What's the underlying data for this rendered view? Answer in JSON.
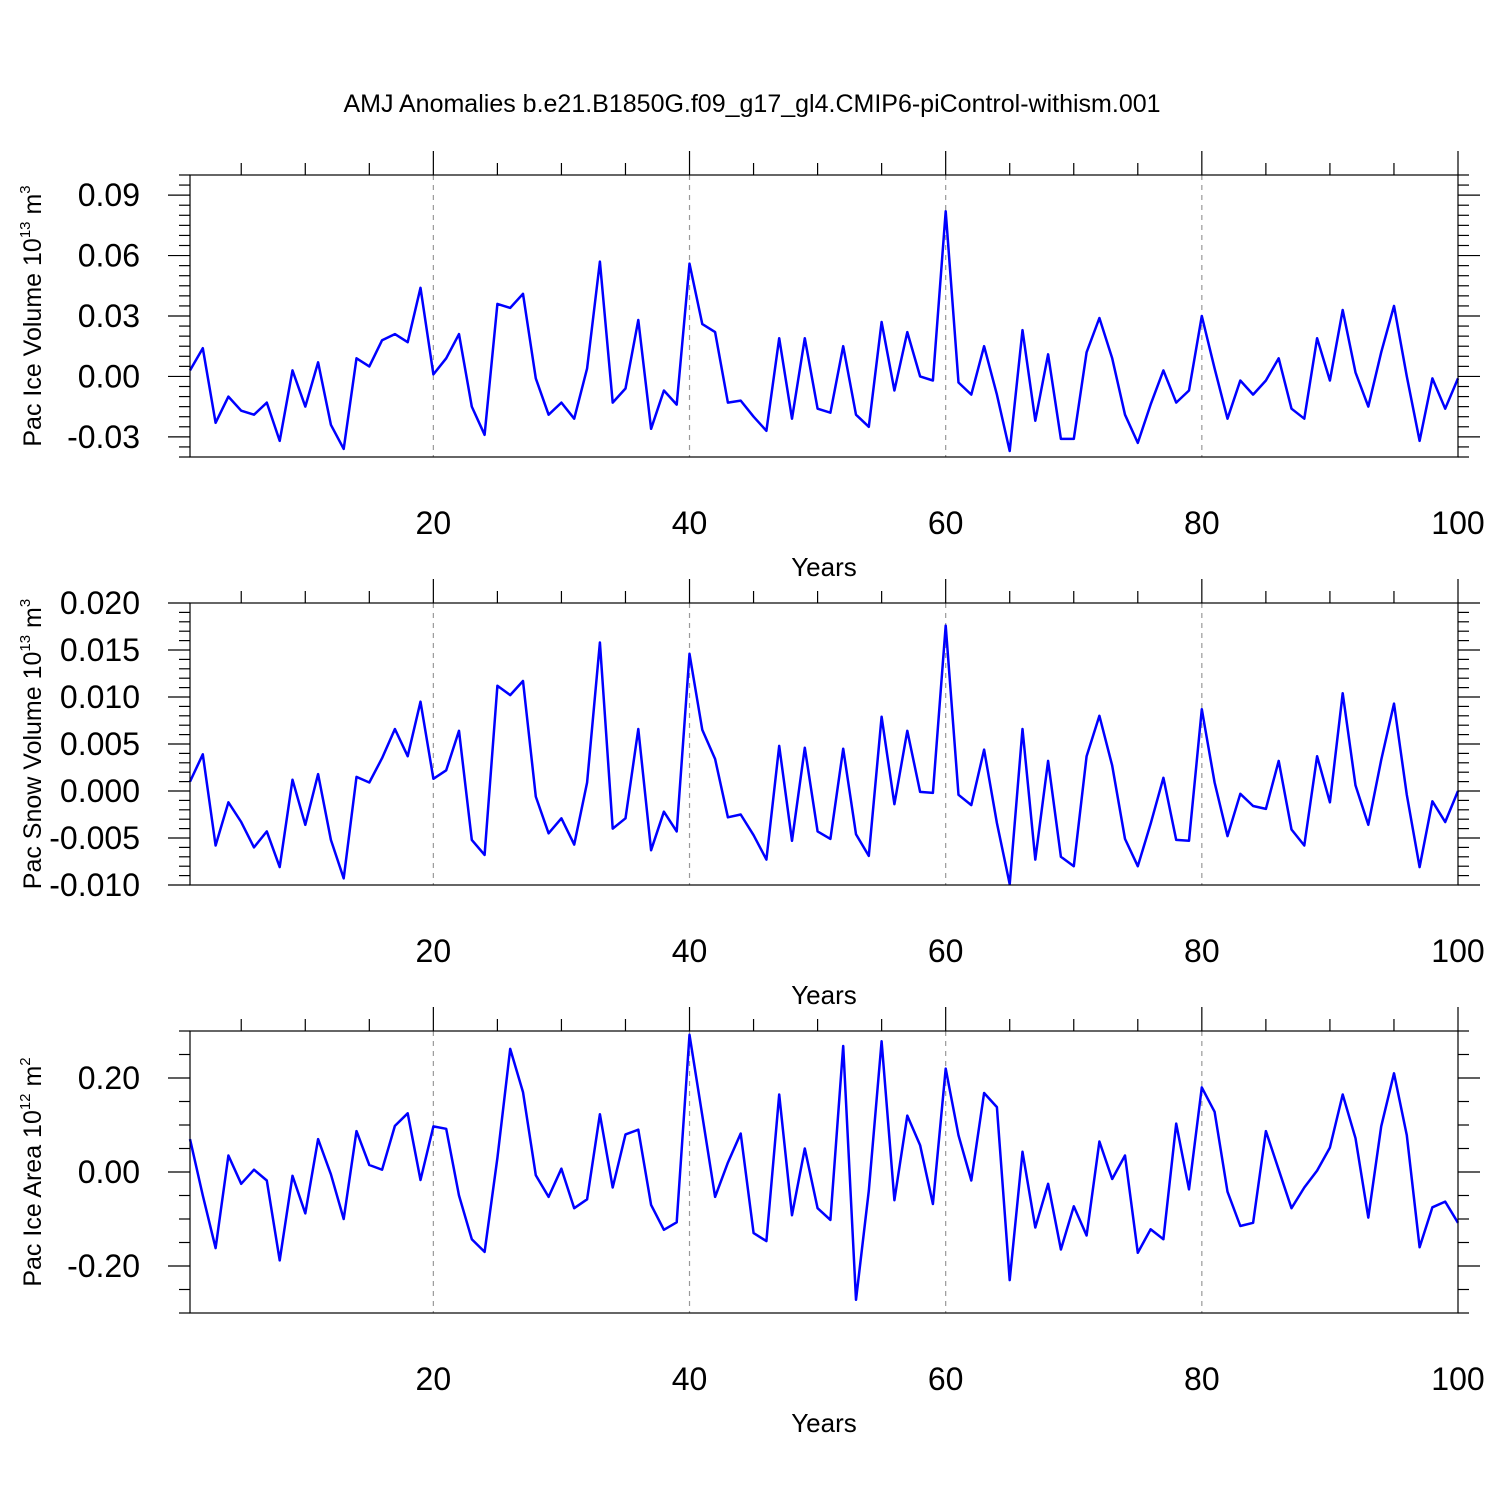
{
  "title": "AMJ Anomalies b.e21.B1850G.f09_g17_gl4.CMIP6-piControl-withism.001",
  "colors": {
    "line": "#0000ff",
    "grid": "#999999",
    "frame": "#000000"
  },
  "chart_data": [
    {
      "type": "line",
      "ylabel": {
        "text": "Pac Ice Volume 10",
        "exp": "13",
        "unit": " m",
        "unit_exp": "3"
      },
      "xlabel": "Years",
      "xlim": [
        1,
        100
      ],
      "ylim": [
        -0.04,
        0.1
      ],
      "xticks": [
        20,
        40,
        60,
        80,
        100
      ],
      "xtick_labels": [
        "20",
        "40",
        "60",
        "80",
        "100"
      ],
      "yticks": [
        -0.03,
        0.0,
        0.03,
        0.06,
        0.09
      ],
      "ytick_labels": [
        "-0.03",
        "0.00",
        "0.03",
        "0.06",
        "0.09"
      ],
      "grid_x": [
        20,
        40,
        60,
        80
      ],
      "series": [
        {
          "values": [
            0.003,
            0.014,
            -0.023,
            -0.01,
            -0.017,
            -0.019,
            -0.013,
            -0.032,
            0.003,
            -0.015,
            0.007,
            -0.024,
            -0.036,
            0.009,
            0.005,
            0.018,
            0.021,
            0.017,
            0.044,
            0.001,
            0.009,
            0.021,
            -0.015,
            -0.029,
            0.036,
            0.034,
            0.041,
            -0.001,
            -0.019,
            -0.013,
            -0.021,
            0.004,
            0.057,
            -0.013,
            -0.006,
            0.028,
            -0.026,
            -0.007,
            -0.014,
            0.056,
            0.026,
            0.022,
            -0.013,
            -0.012,
            -0.02,
            -0.027,
            0.019,
            -0.021,
            0.019,
            -0.016,
            -0.018,
            0.015,
            -0.019,
            -0.025,
            0.027,
            -0.007,
            0.022,
            0.0,
            -0.002,
            0.082,
            -0.003,
            -0.009,
            0.015,
            -0.009,
            -0.037,
            0.023,
            -0.022,
            0.011,
            -0.031,
            -0.031,
            0.012,
            0.029,
            0.009,
            -0.019,
            -0.033,
            -0.014,
            0.003,
            -0.013,
            -0.007,
            0.03,
            0.004,
            -0.021,
            -0.002,
            -0.009,
            -0.002,
            0.009,
            -0.016,
            -0.021,
            0.019,
            -0.002,
            0.033,
            0.002,
            -0.015,
            0.012,
            0.035,
            0.0,
            -0.032,
            -0.001,
            -0.016,
            -0.001
          ]
        }
      ]
    },
    {
      "type": "line",
      "ylabel": {
        "text": "Pac Snow Volume 10",
        "exp": "13",
        "unit": " m",
        "unit_exp": "3"
      },
      "xlabel": "Years",
      "xlim": [
        1,
        100
      ],
      "ylim": [
        -0.01,
        0.02
      ],
      "xticks": [
        20,
        40,
        60,
        80,
        100
      ],
      "xtick_labels": [
        "20",
        "40",
        "60",
        "80",
        "100"
      ],
      "yticks": [
        -0.01,
        -0.005,
        0.0,
        0.005,
        0.01,
        0.015,
        0.02
      ],
      "ytick_labels": [
        "-0.010",
        "-0.005",
        "0.000",
        "0.005",
        "0.010",
        "0.015",
        "0.020"
      ],
      "grid_x": [
        20,
        40,
        60,
        80
      ],
      "series": [
        {
          "values": [
            0.001,
            0.0039,
            -0.0058,
            -0.0012,
            -0.0033,
            -0.006,
            -0.0043,
            -0.0081,
            0.0012,
            -0.0036,
            0.0018,
            -0.0052,
            -0.0093,
            0.0015,
            0.0009,
            0.0035,
            0.0066,
            0.0037,
            0.0095,
            0.0013,
            0.0022,
            0.0064,
            -0.0052,
            -0.0068,
            0.0112,
            0.0102,
            0.0117,
            -0.0006,
            -0.0045,
            -0.0029,
            -0.0057,
            0.0009,
            0.0158,
            -0.004,
            -0.0029,
            0.0066,
            -0.0063,
            -0.0022,
            -0.0043,
            0.0146,
            0.0065,
            0.0034,
            -0.0028,
            -0.0025,
            -0.0047,
            -0.0073,
            0.0048,
            -0.0053,
            0.0046,
            -0.0043,
            -0.0051,
            0.0045,
            -0.0046,
            -0.0069,
            0.0079,
            -0.0014,
            0.0064,
            -0.0001,
            -0.0002,
            0.0176,
            -0.0004,
            -0.0015,
            0.0044,
            -0.0034,
            -0.0099,
            0.0066,
            -0.0073,
            0.0032,
            -0.007,
            -0.008,
            0.0037,
            0.008,
            0.0027,
            -0.0051,
            -0.008,
            -0.0035,
            0.0014,
            -0.0052,
            -0.0053,
            0.0087,
            0.0009,
            -0.0048,
            -0.0003,
            -0.0016,
            -0.0019,
            0.0032,
            -0.0041,
            -0.0058,
            0.0037,
            -0.0012,
            0.0104,
            0.0006,
            -0.0036,
            0.0033,
            0.0093,
            -0.0004,
            -0.0081,
            -0.0011,
            -0.0033,
            0.0
          ]
        }
      ]
    },
    {
      "type": "line",
      "ylabel": {
        "text": "Pac Ice Area 10",
        "exp": "12",
        "unit": " m",
        "unit_exp": "2"
      },
      "xlabel": "Years",
      "xlim": [
        1,
        100
      ],
      "ylim": [
        -0.3,
        0.3
      ],
      "xticks": [
        20,
        40,
        60,
        80,
        100
      ],
      "xtick_labels": [
        "20",
        "40",
        "60",
        "80",
        "100"
      ],
      "yticks": [
        -0.2,
        0.0,
        0.2
      ],
      "ytick_labels": [
        "-0.20",
        "0.00",
        "0.20"
      ],
      "grid_x": [
        20,
        40,
        60,
        80
      ],
      "series": [
        {
          "values": [
            0.07,
            -0.05,
            -0.162,
            0.035,
            -0.025,
            0.005,
            -0.018,
            -0.188,
            -0.008,
            -0.088,
            0.07,
            -0.005,
            -0.1,
            0.087,
            0.015,
            0.005,
            0.098,
            0.125,
            -0.017,
            0.097,
            0.092,
            -0.05,
            -0.143,
            -0.17,
            0.03,
            0.262,
            0.17,
            -0.007,
            -0.053,
            0.007,
            -0.077,
            -0.058,
            0.123,
            -0.033,
            0.08,
            0.09,
            -0.07,
            -0.123,
            -0.107,
            0.292,
            0.12,
            -0.053,
            0.02,
            0.082,
            -0.13,
            -0.147,
            0.165,
            -0.092,
            0.05,
            -0.077,
            -0.102,
            0.268,
            -0.272,
            -0.04,
            0.278,
            -0.06,
            0.12,
            0.057,
            -0.068,
            0.22,
            0.078,
            -0.018,
            0.168,
            0.138,
            -0.23,
            0.043,
            -0.118,
            -0.025,
            -0.165,
            -0.073,
            -0.135,
            0.065,
            -0.015,
            0.035,
            -0.172,
            -0.122,
            -0.143,
            0.103,
            -0.037,
            0.18,
            0.128,
            -0.042,
            -0.115,
            -0.108,
            0.087,
            0.005,
            -0.077,
            -0.033,
            0.003,
            0.052,
            0.165,
            0.072,
            -0.097,
            0.097,
            0.21,
            0.078,
            -0.16,
            -0.075,
            -0.063,
            -0.108
          ]
        }
      ]
    }
  ]
}
